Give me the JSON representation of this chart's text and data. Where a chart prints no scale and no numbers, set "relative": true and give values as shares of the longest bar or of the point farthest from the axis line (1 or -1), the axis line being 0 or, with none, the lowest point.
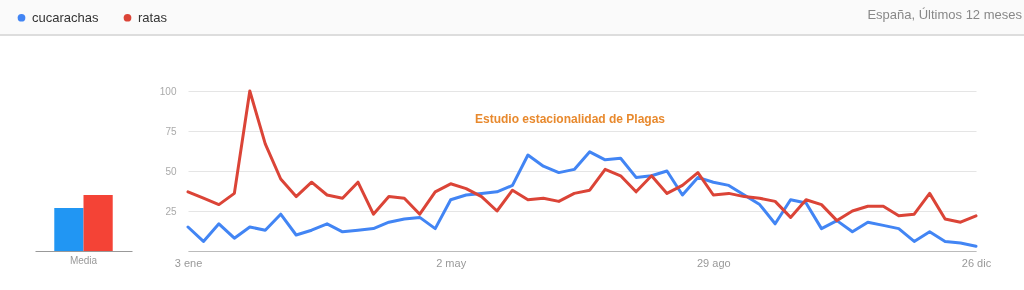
{
  "chart_data": [
    {
      "type": "bar",
      "categories": [
        "Media"
      ],
      "relative": true,
      "tick_labels": "x",
      "series": [
        {
          "color": "#2196f3",
          "values": [
            0.77
          ]
        },
        {
          "color": "#f44336",
          "values": [
            1
          ]
        }
      ]
    },
    {
      "type": "line",
      "legend": "top left",
      "grid": "y",
      "marker": "none",
      "line_style": "solid",
      "annotations": [
        "Estudio estacionalidad de Plagas",
        "España, Últimos 12 meses"
      ],
      "categories": [
        "3 ene",
        null,
        null,
        null,
        null,
        null,
        null,
        null,
        null,
        null,
        null,
        null,
        null,
        null,
        null,
        null,
        null,
        "2 may",
        null,
        null,
        null,
        null,
        null,
        null,
        null,
        null,
        null,
        null,
        null,
        null,
        null,
        null,
        null,
        null,
        "29 ago",
        null,
        null,
        null,
        null,
        null,
        null,
        null,
        null,
        null,
        null,
        null,
        null,
        null,
        null,
        null,
        null,
        "26 dic"
      ],
      "ylim": [
        0,
        100
      ],
      "yticks": [
        {
          "value": 0,
          "label": null
        },
        25,
        50,
        75,
        100
      ],
      "series": [
        {
          "name": "cucarachas",
          "color": "#4285f4",
          "values": [
            15,
            6,
            17,
            8,
            15,
            13,
            23,
            10,
            13,
            17,
            12,
            13,
            14,
            18,
            20,
            21,
            14,
            32,
            35,
            36,
            37,
            41,
            60,
            53,
            49,
            51,
            62,
            57,
            58,
            46,
            47,
            50,
            35,
            46,
            43,
            41,
            35,
            29,
            17,
            32,
            30,
            14,
            19,
            12,
            18,
            16,
            14,
            6,
            12,
            6,
            5,
            3
          ]
        },
        {
          "name": "ratas",
          "color": "#db4437",
          "values": [
            37,
            33,
            29,
            36,
            100,
            67,
            45,
            34,
            43,
            35,
            33,
            43,
            23,
            34,
            33,
            23,
            37,
            42,
            39,
            34,
            25,
            38,
            32,
            33,
            31,
            36,
            38,
            51,
            47,
            37,
            47,
            36,
            41,
            49,
            35,
            36,
            34,
            33,
            31,
            21,
            32,
            29,
            19,
            25,
            28,
            28,
            22,
            23,
            36,
            20,
            18,
            22
          ]
        }
      ]
    }
  ]
}
